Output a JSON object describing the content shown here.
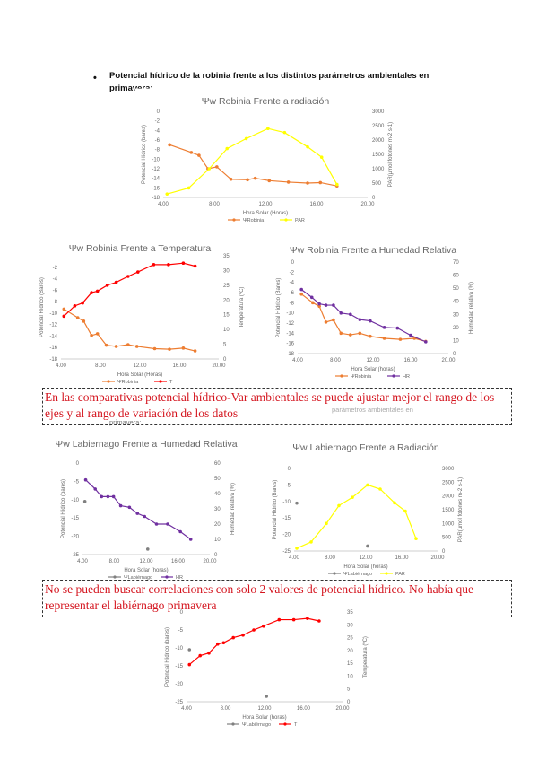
{
  "heading": {
    "bullet": "•",
    "line1": "Potencial hídrico de la robinia frente a los distintos parámetros ambientales en",
    "line2": "primavera:"
  },
  "overlap_text": {
    "ghost": "parámetros ambientales en",
    "label": "primavera:"
  },
  "notes": {
    "note1": "En las comparativas potencial hídrico-Var ambientales se puede ajustar mejor el rango de los ejes y al rango de variación de los datos",
    "note2": "No se pueden buscar correlaciones con solo 2 valores de potencial hídrico. No había que representar el labiérnago primavera"
  },
  "colors": {
    "orange": "#ed7d31",
    "yellow": "#ffff00",
    "red": "#ff0000",
    "purple": "#7030a0",
    "gray": "#808080",
    "note": "#d4141e"
  },
  "chart_data": [
    {
      "id": "robinia-rad",
      "type": "line",
      "title": "Ψw Robinia Frente a radiación",
      "xlabel": "Hora Solar (Horas)",
      "ylabel": "Potencial Hídrico (bares)",
      "y2label": "PAR(µmol fotones m-2 s-1)",
      "xlim": [
        4,
        20
      ],
      "xticks": [
        4,
        8,
        12,
        16,
        20
      ],
      "xtick_labels": [
        "4.00",
        "8.00",
        "12.00",
        "16.00",
        "20.00"
      ],
      "ylim": [
        -18,
        0
      ],
      "yticks": [
        0,
        -2,
        -4,
        -6,
        -8,
        -10,
        -12,
        -14,
        -16,
        -18
      ],
      "y2lim": [
        0,
        3000
      ],
      "y2ticks": [
        0,
        500,
        1000,
        1500,
        2000,
        2500,
        3000
      ],
      "series": [
        {
          "name": "ΨRobinia",
          "axis": "y",
          "color": "#ed7d31",
          "x": [
            4.5,
            6.2,
            6.8,
            7.5,
            8.2,
            9.3,
            10.6,
            11.2,
            12.3,
            13.8,
            15.3,
            16.3,
            17.6
          ],
          "y": [
            -7,
            -8.6,
            -9.2,
            -12,
            -11.6,
            -14.2,
            -14.3,
            -14,
            -14.5,
            -14.8,
            -15,
            -14.9,
            -15.6
          ]
        },
        {
          "name": "PAR",
          "axis": "y2",
          "color": "#ffff00",
          "x": [
            4.3,
            6,
            7.6,
            9,
            10.5,
            12.2,
            13.5,
            15.3,
            16.4,
            17.6
          ],
          "y": [
            120,
            330,
            1000,
            1700,
            2050,
            2400,
            2260,
            1760,
            1400,
            450
          ]
        }
      ]
    },
    {
      "id": "robinia-temp",
      "type": "line",
      "title": "Ψw Robinia Frente a Temperatura",
      "xlabel": "Hora Solar (Horas)",
      "ylabel": "Potencial Hídrico (Bares)",
      "y2label": "Temperatura (ºC)",
      "xlim": [
        4,
        20
      ],
      "xticks": [
        4,
        8,
        12,
        16,
        20
      ],
      "xtick_labels": [
        "4.00",
        "8.00",
        "12.00",
        "16.00",
        "20.00"
      ],
      "ylim": [
        -18,
        0
      ],
      "yticks": [
        -2,
        -4,
        -6,
        -8,
        -10,
        -12,
        -14,
        -16,
        -18
      ],
      "y2lim": [
        0,
        35
      ],
      "y2ticks": [
        0,
        5,
        10,
        15,
        20,
        25,
        30,
        35
      ],
      "series": [
        {
          "name": "ΨRobinia",
          "axis": "y",
          "color": "#ed7d31",
          "x": [
            4.3,
            5.7,
            6.3,
            7.1,
            7.7,
            8.6,
            9.6,
            10.8,
            11.7,
            13.5,
            15,
            16.4,
            17.6
          ],
          "y": [
            -9.3,
            -10.8,
            -11.4,
            -13.9,
            -13.6,
            -15.6,
            -15.8,
            -15.5,
            -15.8,
            -16.2,
            -16.3,
            -16.1,
            -16.6
          ]
        },
        {
          "name": "T",
          "axis": "y2",
          "color": "#ff0000",
          "x": [
            4.3,
            5.4,
            6.2,
            7.1,
            7.7,
            8.7,
            9.6,
            10.8,
            11.8,
            13.4,
            14.9,
            16.4,
            17.6
          ],
          "y": [
            14.5,
            18,
            19,
            22.5,
            23,
            25,
            26,
            28,
            29.5,
            32,
            32,
            32.5,
            31.5
          ]
        }
      ]
    },
    {
      "id": "robinia-hr",
      "type": "line",
      "title": "Ψw Robinia Frente a Humedad Relativa",
      "xlabel": "Hora Solar (horas)",
      "ylabel": "Potencial Hídrico (Bares)",
      "y2label": "Humedad relativa (%)",
      "xlim": [
        4,
        20
      ],
      "xticks": [
        4,
        8,
        12,
        16,
        20
      ],
      "xtick_labels": [
        "4.00",
        "8.00",
        "12.00",
        "16.00",
        "20.00"
      ],
      "ylim": [
        -18,
        0
      ],
      "yticks": [
        0,
        -2,
        -4,
        -6,
        -8,
        -10,
        -12,
        -14,
        -16,
        -18
      ],
      "y2lim": [
        0,
        70
      ],
      "y2ticks": [
        0,
        10,
        20,
        30,
        40,
        50,
        60,
        70
      ],
      "series": [
        {
          "name": "ΨRobinia",
          "axis": "y",
          "color": "#ed7d31",
          "x": [
            4.4,
            5.6,
            6.3,
            7,
            7.8,
            8.6,
            9.6,
            10.6,
            11.7,
            13.2,
            14.9,
            16.4,
            17.6
          ],
          "y": [
            -6.3,
            -8,
            -8.7,
            -11.8,
            -11.4,
            -14,
            -14.3,
            -14,
            -14.6,
            -15,
            -15.2,
            -15,
            -15.6
          ]
        },
        {
          "name": "HR",
          "axis": "y2",
          "color": "#7030a0",
          "x": [
            4.4,
            5.5,
            6.3,
            7,
            7.8,
            8.6,
            9.6,
            10.6,
            11.7,
            13.2,
            14.6,
            16,
            17.6
          ],
          "y": [
            49,
            43,
            38,
            37,
            37,
            31,
            30,
            26,
            25,
            20,
            19.5,
            14,
            9
          ]
        }
      ]
    },
    {
      "id": "labiernago-hr",
      "type": "line",
      "title": "Ψw Labiernago Frente a Humedad Relativa",
      "xlabel": "Hora Solar (horas)",
      "ylabel": "Potencial Hídrico (bares)",
      "y2label": "Humedad relativa (%)",
      "xlim": [
        4,
        20
      ],
      "xticks": [
        4,
        8,
        12,
        16,
        20
      ],
      "xtick_labels": [
        "4.00",
        "8.00",
        "12.00",
        "16.00",
        "20.00"
      ],
      "ylim": [
        -25,
        0
      ],
      "yticks": [
        0,
        -5,
        -10,
        -15,
        -20,
        -25
      ],
      "y2lim": [
        0,
        60
      ],
      "y2ticks": [
        0,
        10,
        20,
        30,
        40,
        50,
        60
      ],
      "series": [
        {
          "name": "ΨLabiérnago",
          "axis": "y",
          "color": "#808080",
          "x": [
            4.3,
            12.2
          ],
          "y": [
            -10.5,
            -23.5
          ]
        },
        {
          "name": "HR",
          "axis": "y2",
          "color": "#7030a0",
          "x": [
            4.4,
            5.6,
            6.4,
            7.2,
            7.9,
            8.8,
            9.9,
            10.9,
            11.8,
            13.3,
            14.7,
            16.3,
            17.6
          ],
          "y": [
            49,
            43,
            38,
            38,
            38,
            32,
            31,
            27,
            25,
            20,
            20,
            15,
            10
          ]
        }
      ]
    },
    {
      "id": "labiernago-rad",
      "type": "line",
      "title": "Ψw Labiernago Frente a Radiación",
      "xlabel": "Hora Solar (horas)",
      "ylabel": "Potencial Hídrico (Bares)",
      "y2label": "PAR(µmol fotones m-2 s-1)",
      "xlim": [
        4,
        20
      ],
      "xticks": [
        4,
        8,
        12,
        16,
        20
      ],
      "xtick_labels": [
        "4.00",
        "8.00",
        "12.00",
        "16.00",
        "20.00"
      ],
      "ylim": [
        -25,
        0
      ],
      "yticks": [
        0,
        -5,
        -10,
        -15,
        -20,
        -25
      ],
      "y2lim": [
        0,
        3000
      ],
      "y2ticks": [
        0,
        500,
        1000,
        1500,
        2000,
        2500,
        3000
      ],
      "series": [
        {
          "name": "ΨLabiérnago",
          "axis": "y",
          "color": "#808080",
          "x": [
            4.3,
            12.2
          ],
          "y": [
            -10.5,
            -23.5
          ]
        },
        {
          "name": "PAR",
          "axis": "y2",
          "color": "#ffff00",
          "x": [
            4.3,
            5.9,
            7.6,
            9,
            10.5,
            12.2,
            13.6,
            15.2,
            16.4,
            17.6
          ],
          "y": [
            100,
            330,
            1000,
            1650,
            1950,
            2400,
            2250,
            1750,
            1450,
            450
          ]
        }
      ]
    },
    {
      "id": "labiernago-temp",
      "type": "line",
      "title": "",
      "xlabel": "Hora Solar (horas)",
      "ylabel": "Potencial Hídrico (bares)",
      "y2label": "Temperatura (ºC)",
      "xlim": [
        4,
        20
      ],
      "xticks": [
        4,
        8,
        12,
        16,
        20
      ],
      "xtick_labels": [
        "4.00",
        "8.00",
        "12.00",
        "16.00",
        "20.00"
      ],
      "ylim": [
        -25,
        0
      ],
      "yticks": [
        0,
        -5,
        -10,
        -15,
        -20,
        -25
      ],
      "y2lim": [
        0,
        35
      ],
      "y2ticks": [
        0,
        5,
        10,
        15,
        20,
        25,
        30,
        35
      ],
      "series": [
        {
          "name": "ΨLabiérnago",
          "axis": "y",
          "color": "#808080",
          "x": [
            4.3,
            12.2
          ],
          "y": [
            -10.5,
            -23.5
          ]
        },
        {
          "name": "T",
          "axis": "y2",
          "color": "#ff0000",
          "x": [
            4.3,
            5.4,
            6.3,
            7.2,
            7.8,
            8.8,
            9.8,
            10.9,
            11.9,
            13.5,
            15,
            16.4,
            17.6
          ],
          "y": [
            14.5,
            18,
            19,
            22.5,
            23,
            25,
            26,
            28,
            29.5,
            32,
            32,
            32.5,
            31.5
          ]
        }
      ]
    }
  ]
}
